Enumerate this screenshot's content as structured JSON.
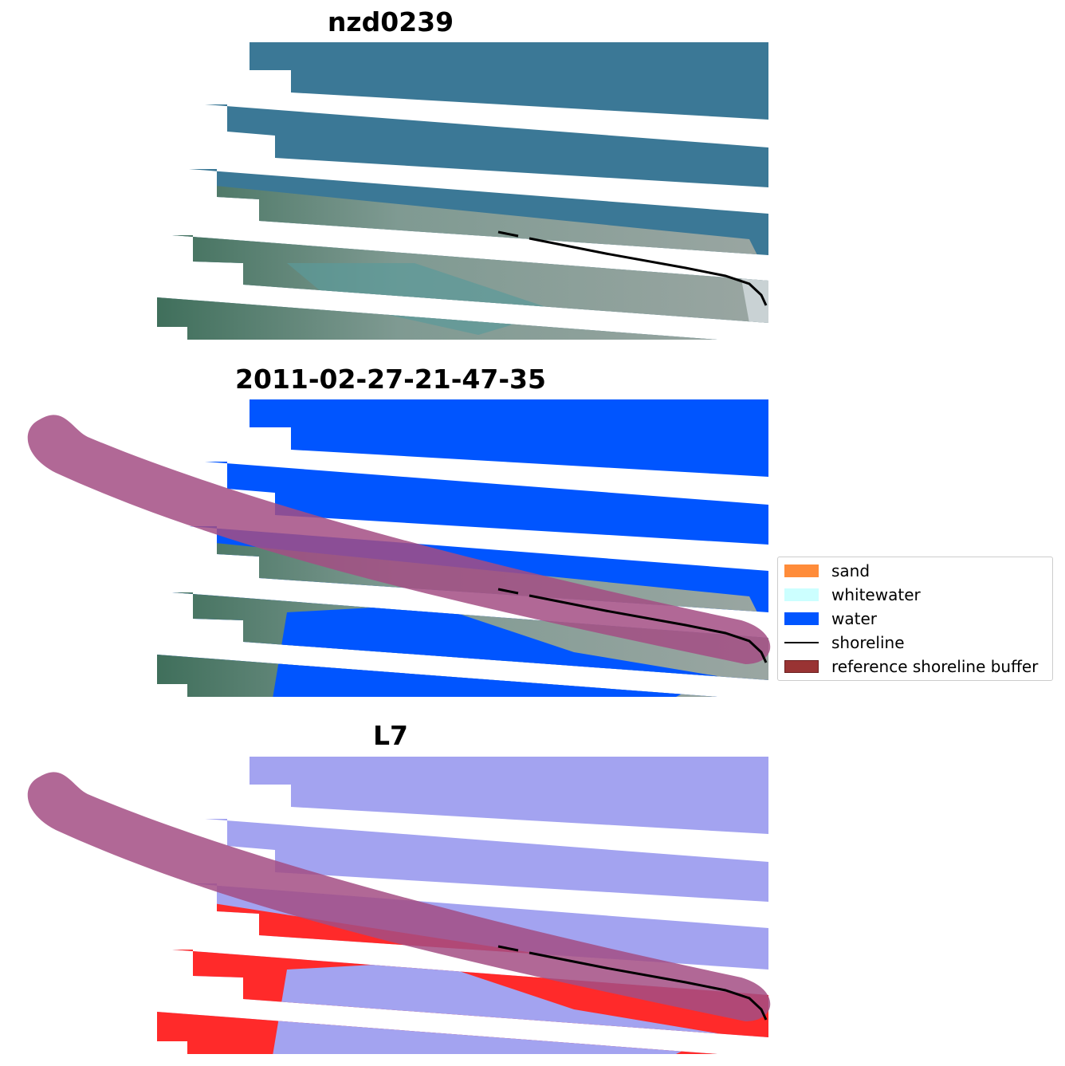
{
  "panels": [
    {
      "title": "nzd0239",
      "layer": "rgb"
    },
    {
      "title": "2011-02-27-21-47-35",
      "layer": "classified"
    },
    {
      "title": "L7",
      "layer": "mndwi"
    }
  ],
  "legend": {
    "items": [
      {
        "label": "sand",
        "color": "#ff8c3a",
        "kind": "patch"
      },
      {
        "label": "whitewater",
        "color": "#ccffff",
        "kind": "patch"
      },
      {
        "label": "water",
        "color": "#0055ff",
        "kind": "patch"
      },
      {
        "label": "shoreline",
        "color": "#000000",
        "kind": "line"
      },
      {
        "label": "reference shoreline buffer",
        "color": "#993333",
        "kind": "patch"
      }
    ]
  },
  "colors": {
    "sea": "#3b7896",
    "land": "#6e8f86",
    "water_class": "#0055ff",
    "buffer": "#a34d84",
    "mndwi_water": "#a3a3f0",
    "mndwi_land": "#ff2a2a"
  }
}
